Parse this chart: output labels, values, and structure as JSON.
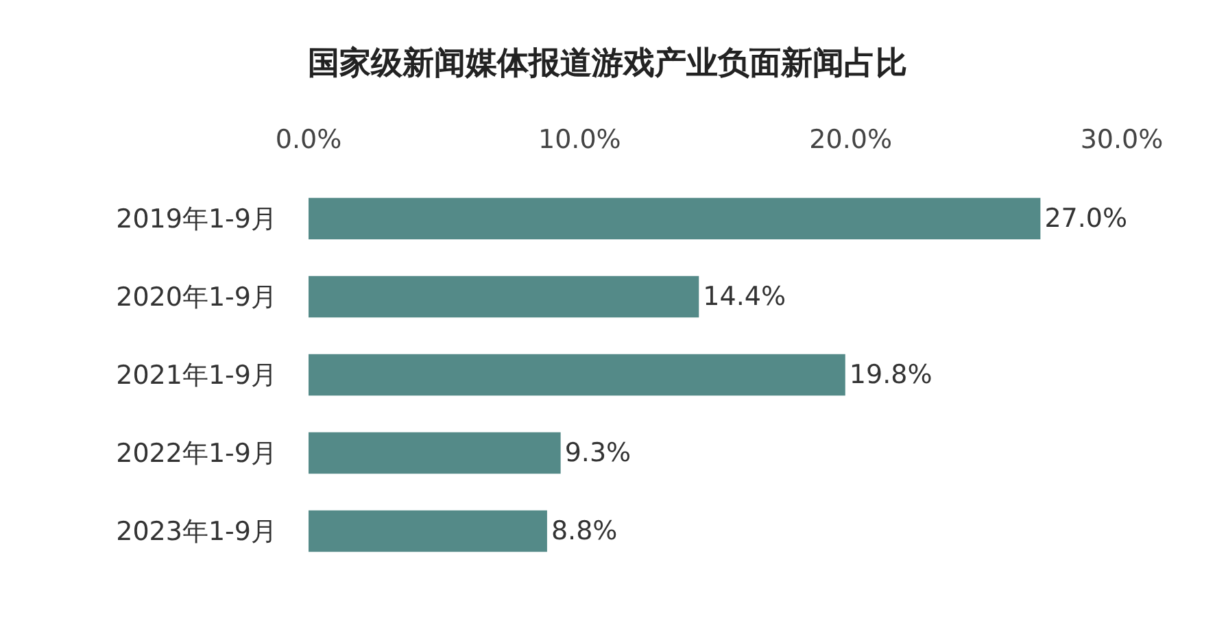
{
  "chart_data": {
    "type": "bar",
    "orientation": "horizontal",
    "title": "国家级新闻媒体报道游戏产业负面新闻占比",
    "categories": [
      "2019年1-9月",
      "2020年1-9月",
      "2021年1-9月",
      "2022年1-9月",
      "2023年1-9月"
    ],
    "values": [
      27.0,
      14.4,
      19.8,
      9.3,
      8.8
    ],
    "value_labels": [
      "27.0%",
      "14.4%",
      "19.8%",
      "9.3%",
      "8.8%"
    ],
    "color": "#548a88",
    "xlim": [
      0,
      30
    ],
    "xticks": [
      {
        "value": 0,
        "label": "0.0%"
      },
      {
        "value": 10,
        "label": "10.0%"
      },
      {
        "value": 20,
        "label": "20.0%"
      },
      {
        "value": 30,
        "label": "30.0%"
      }
    ],
    "grid": false,
    "legend": false
  }
}
